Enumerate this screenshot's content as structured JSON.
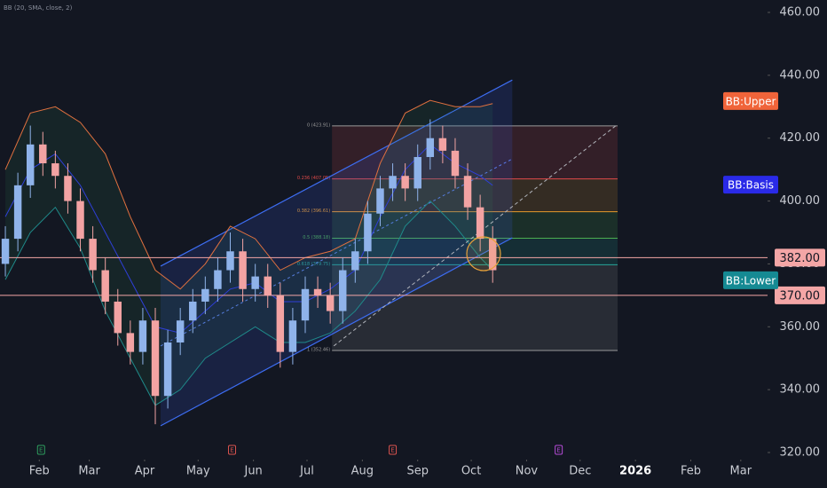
{
  "chart_data": {
    "type": "candlestick",
    "indicator_label": "BB (20, SMA, close, 2)",
    "xlim": [
      9,
      439
    ],
    "xticks": [
      {
        "value": 31,
        "label": "Feb"
      },
      {
        "value": 59,
        "label": "Mar"
      },
      {
        "value": 90,
        "label": "Apr"
      },
      {
        "value": 120,
        "label": "May"
      },
      {
        "value": 151,
        "label": "Jun"
      },
      {
        "value": 181,
        "label": "Jul"
      },
      {
        "value": 212,
        "label": "Aug"
      },
      {
        "value": 243,
        "label": "Sep"
      },
      {
        "value": 273,
        "label": "Oct"
      },
      {
        "value": 304,
        "label": "Nov"
      },
      {
        "value": 334,
        "label": "Dec"
      },
      {
        "value": 365,
        "label": "2026"
      },
      {
        "value": 396,
        "label": "Feb"
      },
      {
        "value": 424,
        "label": "Mar"
      }
    ],
    "ylim": [
      320,
      460
    ],
    "yticks": [
      {
        "value": 320,
        "label": "320.00"
      },
      {
        "value": 340,
        "label": "340.00"
      },
      {
        "value": 360,
        "label": "360.00"
      },
      {
        "value": 380,
        "label": "380.00"
      },
      {
        "value": 400,
        "label": "400.00"
      },
      {
        "value": 420,
        "label": "420.00"
      },
      {
        "value": 440,
        "label": "440.00"
      },
      {
        "value": 460,
        "label": "460.00"
      }
    ],
    "grid": false,
    "up_color": "#8fb3ea",
    "down_color": "#f2a3a3",
    "x": [
      12,
      19,
      26,
      33,
      40,
      47,
      54,
      61,
      68,
      75,
      82,
      89,
      96,
      103,
      110,
      117,
      124,
      131,
      138,
      145,
      152,
      159,
      166,
      173,
      180,
      187,
      194,
      201,
      208,
      215,
      222,
      229,
      236,
      243,
      250,
      257,
      264,
      271,
      278,
      285
    ],
    "open": [
      380,
      388,
      405,
      418,
      412,
      408,
      400,
      388,
      378,
      368,
      358,
      352,
      362,
      338,
      355,
      362,
      368,
      372,
      378,
      384,
      372,
      376,
      370,
      352,
      362,
      372,
      370,
      365,
      378,
      384,
      396,
      404,
      408,
      404,
      414,
      420,
      416,
      408,
      398,
      388
    ],
    "high": [
      392,
      409,
      424,
      422,
      416,
      412,
      404,
      392,
      382,
      372,
      362,
      366,
      366,
      359,
      366,
      372,
      376,
      382,
      390,
      388,
      380,
      380,
      374,
      366,
      376,
      376,
      374,
      382,
      388,
      400,
      408,
      412,
      412,
      418,
      426,
      424,
      420,
      412,
      402,
      392
    ],
    "low": [
      376,
      384,
      401,
      408,
      404,
      396,
      384,
      374,
      364,
      354,
      348,
      348,
      329,
      334,
      351,
      358,
      364,
      368,
      374,
      368,
      368,
      366,
      347,
      348,
      358,
      366,
      361,
      361,
      374,
      380,
      392,
      400,
      400,
      400,
      410,
      412,
      404,
      394,
      384,
      374
    ],
    "close": [
      388,
      405,
      418,
      412,
      408,
      400,
      388,
      378,
      368,
      358,
      352,
      362,
      338,
      355,
      362,
      368,
      372,
      378,
      384,
      372,
      376,
      370,
      352,
      362,
      372,
      370,
      365,
      378,
      384,
      396,
      404,
      408,
      404,
      414,
      420,
      416,
      408,
      398,
      388,
      378
    ],
    "bands_x": [
      12,
      26,
      40,
      54,
      68,
      82,
      96,
      110,
      124,
      138,
      152,
      166,
      180,
      194,
      208,
      222,
      236,
      250,
      264,
      278,
      285
    ],
    "bands": [
      {
        "name": "BB:Upper",
        "color": "#e0703f",
        "values": [
          410,
          428,
          430,
          425,
          415,
          395,
          378,
          372,
          380,
          392,
          388,
          378,
          382,
          384,
          388,
          412,
          428,
          432,
          430,
          430,
          431
        ],
        "tag_price": 431.8
      },
      {
        "name": "BB:Basis",
        "color": "#2f3fd8",
        "values": [
          395,
          410,
          415,
          405,
          390,
          375,
          360,
          358,
          365,
          372,
          374,
          368,
          368,
          372,
          378,
          395,
          410,
          418,
          412,
          408,
          405
        ],
        "tag_price": 405.2
      },
      {
        "name": "BB:Lower",
        "color": "#1f8a8a",
        "values": [
          375,
          390,
          398,
          385,
          365,
          350,
          335,
          340,
          350,
          355,
          360,
          355,
          355,
          358,
          365,
          375,
          392,
          400,
          392,
          382,
          378
        ],
        "tag_price": 374.8
      }
    ],
    "hlines": [
      {
        "value": 382,
        "label": "382.00"
      },
      {
        "value": 370,
        "label": "370.00"
      }
    ],
    "fib": {
      "x": [
        195,
        355
      ],
      "levels": [
        {
          "price": 423.91,
          "label": "0 (423.91)",
          "color": "#9a9a9a"
        },
        {
          "price": 407.05,
          "label": "0.236 (407.05)",
          "color": "#e04a4a"
        },
        {
          "price": 396.61,
          "label": "0.382 (396.61)",
          "color": "#e89a2c"
        },
        {
          "price": 388.18,
          "label": "0.5 (388.18)",
          "color": "#4caf50"
        },
        {
          "price": 379.75,
          "label": "0.618 (379.75)",
          "color": "#26a69a"
        },
        {
          "price": 352.46,
          "label": "1 (352.46)",
          "color": "#9a9a9a"
        }
      ]
    },
    "channel": {
      "x": [
        99,
        296
      ],
      "upper": [
        379.3,
        438.5
      ],
      "lower": [
        328.5,
        388.3
      ]
    },
    "trend": {
      "x": [
        196,
        355
      ],
      "y": [
        353.9,
        424.4
      ]
    },
    "events": [
      {
        "x": 32,
        "label": "E",
        "color": "#2e9e5e"
      },
      {
        "x": 139,
        "label": "E",
        "color": "#d9534f"
      },
      {
        "x": 229,
        "label": "E",
        "color": "#d9534f"
      },
      {
        "x": 322,
        "label": "E",
        "color": "#b44bd6"
      }
    ]
  }
}
